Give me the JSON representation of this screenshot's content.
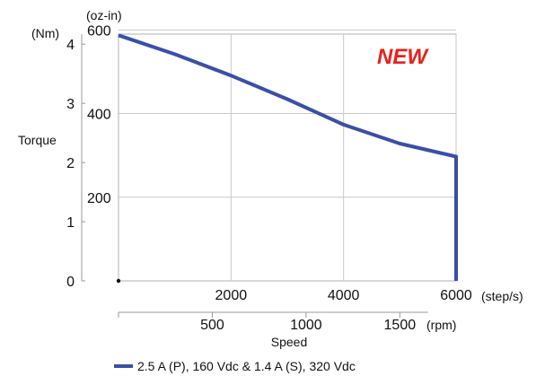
{
  "chart_data": {
    "type": "line",
    "badge": "NEW",
    "badge_color": "#e8211c",
    "line_color": "#3a4fa6",
    "grid": true,
    "y_axis_left": {
      "unit": "(Nm)",
      "label": "Torque",
      "ticks": [
        "0",
        "1",
        "2",
        "3",
        "4"
      ],
      "range": [
        0,
        4.17
      ]
    },
    "y_axis_right": {
      "unit": "(oz-in)",
      "ticks": [
        "200",
        "400",
        "600"
      ],
      "range": [
        0,
        590
      ]
    },
    "x_axis_top": {
      "unit": "(step/s)",
      "ticks": [
        "2000",
        "4000",
        "6000"
      ],
      "range": [
        0,
        6000
      ]
    },
    "x_axis_bottom": {
      "unit": "(rpm)",
      "label": "Speed",
      "ticks": [
        "500",
        "1000",
        "1500"
      ],
      "range": [
        0,
        1800
      ]
    },
    "series": [
      {
        "name": "2.5 A (P), 160 Vdc & 1.4 A (S), 320 Vdc",
        "x": [
          0,
          1000,
          2000,
          3000,
          4000,
          5000,
          6000,
          6000
        ],
        "y": [
          4.15,
          3.83,
          3.47,
          3.07,
          2.64,
          2.32,
          2.1,
          0
        ]
      }
    ]
  }
}
